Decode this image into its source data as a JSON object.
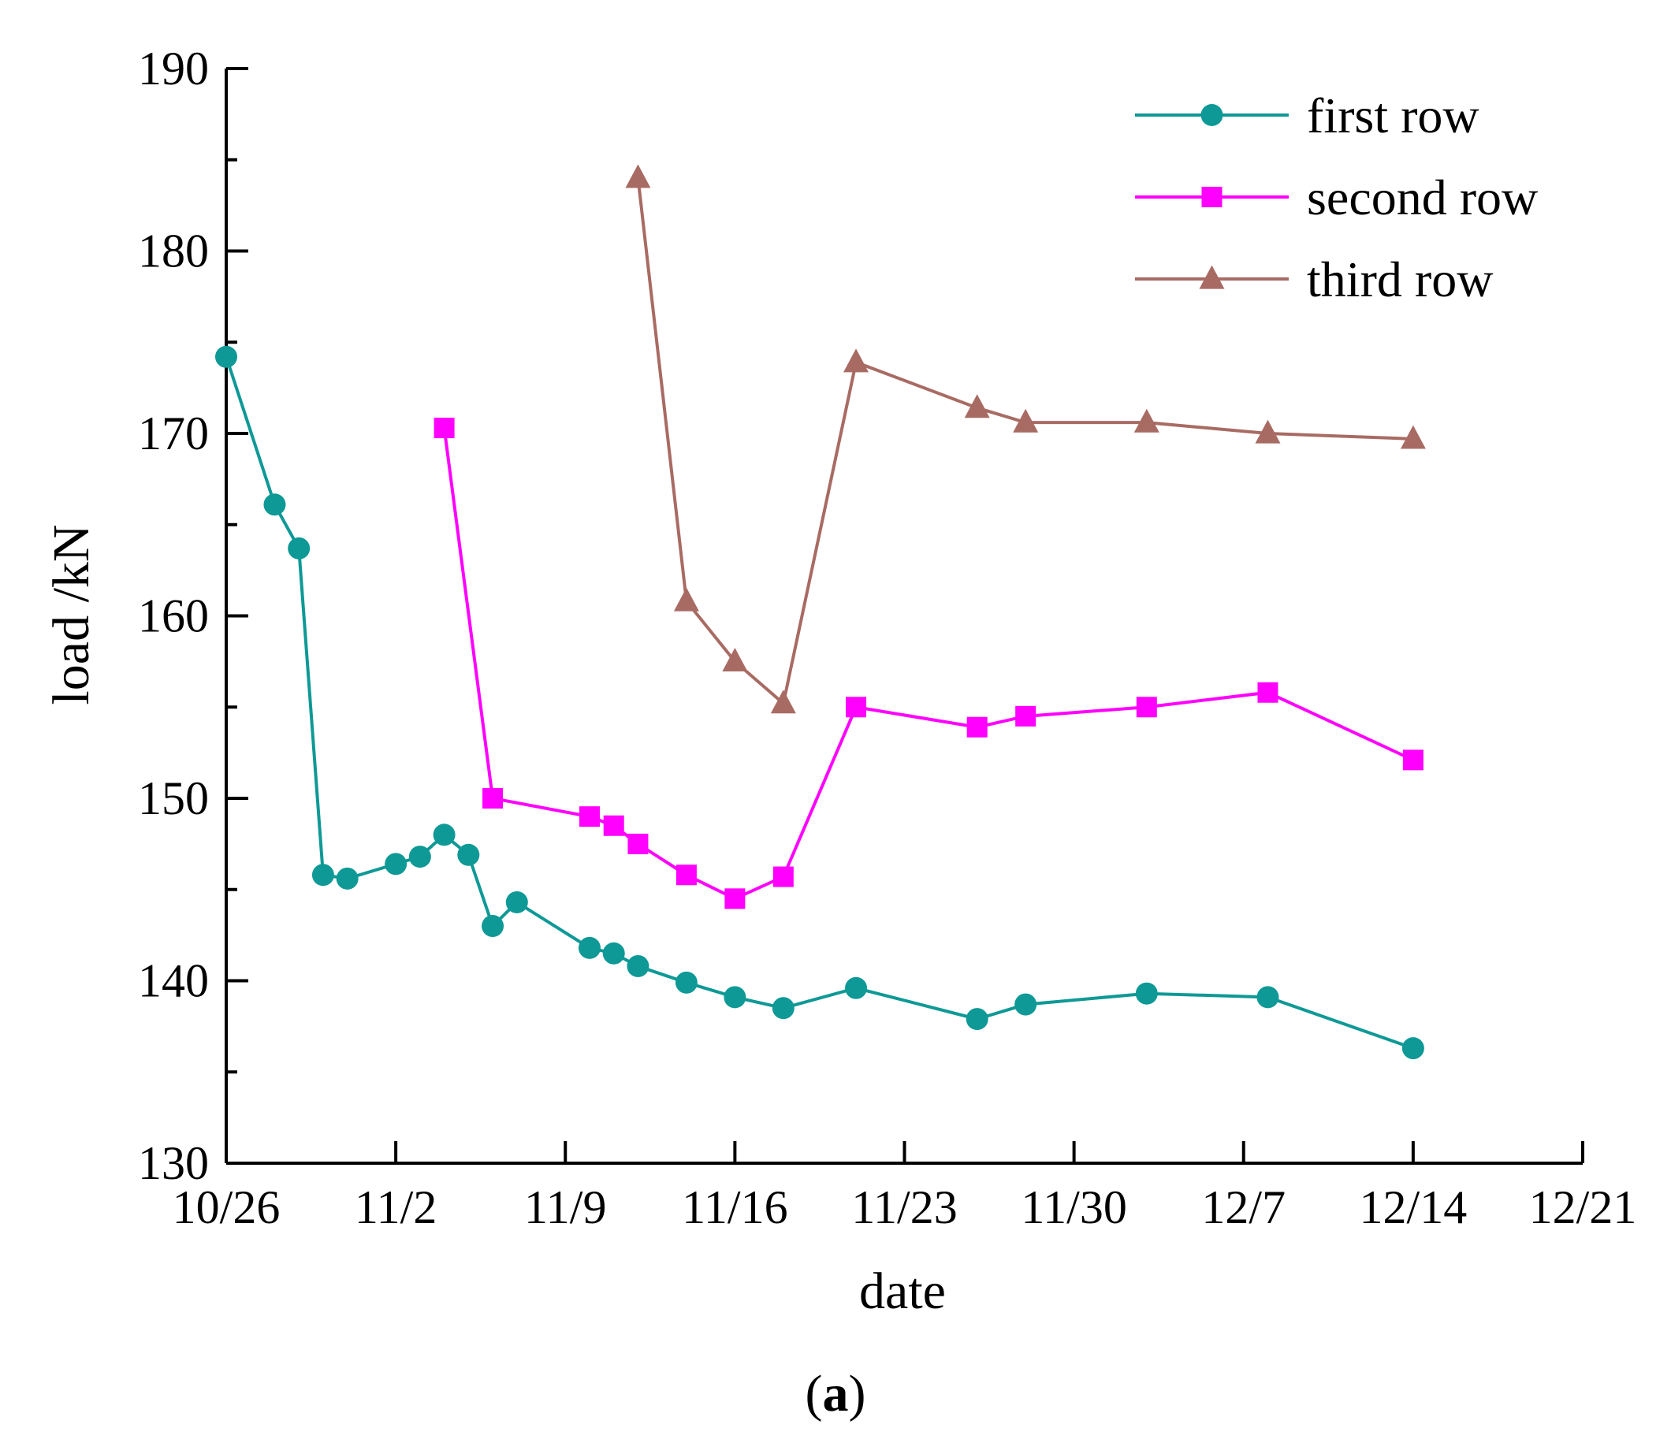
{
  "chart_data": {
    "type": "line",
    "title": "",
    "xlabel": "date",
    "ylabel": "load /kN",
    "caption": {
      "open": "(",
      "letter": "a",
      "close": ")"
    },
    "xlim": [
      0,
      56
    ],
    "ylim": [
      130,
      190
    ],
    "x_ticks": [
      {
        "pos": 0,
        "label": "10/26"
      },
      {
        "pos": 7,
        "label": "11/2"
      },
      {
        "pos": 14,
        "label": "11/9"
      },
      {
        "pos": 21,
        "label": "11/16"
      },
      {
        "pos": 28,
        "label": "11/23"
      },
      {
        "pos": 35,
        "label": "11/30"
      },
      {
        "pos": 42,
        "label": "12/7"
      },
      {
        "pos": 49,
        "label": "12/14"
      },
      {
        "pos": 56,
        "label": "12/21"
      }
    ],
    "y_ticks": [
      130,
      140,
      150,
      160,
      170,
      180,
      190
    ],
    "y_minor_ticks": [
      135,
      145,
      155,
      165,
      175,
      185
    ],
    "x_minor_ticks": [],
    "legend_position": "top-right",
    "series": [
      {
        "name": "first row",
        "color": "#0e9996",
        "marker": "circle",
        "x": [
          0,
          2,
          3,
          4,
          5,
          7,
          8,
          9,
          10,
          11,
          12,
          15,
          16,
          17,
          19,
          21,
          23,
          26,
          31,
          33,
          38,
          43,
          49
        ],
        "y": [
          174.2,
          166.1,
          163.7,
          145.8,
          145.6,
          146.4,
          146.8,
          148.0,
          146.9,
          143.0,
          144.3,
          141.8,
          141.5,
          140.8,
          139.9,
          139.1,
          138.5,
          139.6,
          137.9,
          138.7,
          139.3,
          139.1,
          136.3
        ]
      },
      {
        "name": "second row",
        "color": "#ff00ff",
        "marker": "square",
        "x": [
          9,
          11,
          15,
          16,
          17,
          19,
          21,
          23,
          26,
          31,
          33,
          38,
          43,
          49
        ],
        "y": [
          170.3,
          150.0,
          149.0,
          148.5,
          147.5,
          145.8,
          144.5,
          145.7,
          155.0,
          153.9,
          154.5,
          155.0,
          155.8,
          152.1
        ]
      },
      {
        "name": "third row",
        "color": "#a86b63",
        "marker": "triangle",
        "x": [
          17,
          19,
          21,
          23,
          26,
          31,
          33,
          38,
          43,
          49
        ],
        "y": [
          184.0,
          160.8,
          157.5,
          155.2,
          173.9,
          171.4,
          170.6,
          170.6,
          170.0,
          169.7
        ]
      }
    ]
  }
}
